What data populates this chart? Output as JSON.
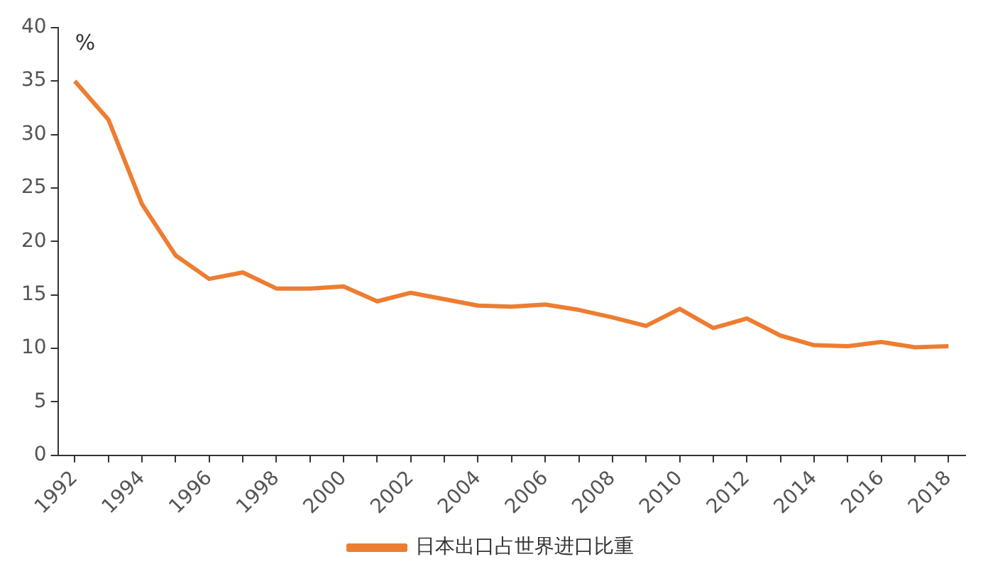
{
  "chart_data": {
    "type": "line",
    "ylabel": "%",
    "categories": [
      "1992",
      null,
      "1994",
      null,
      "1996",
      null,
      "1998",
      null,
      "2000",
      null,
      "2002",
      null,
      "2004",
      null,
      "2006",
      null,
      "2008",
      null,
      "2010",
      null,
      "2012",
      null,
      "2014",
      null,
      "2016",
      null,
      "2018"
    ],
    "series": [
      {
        "name": "日本出口占世界进口比重",
        "color": "#ed7d31",
        "values": [
          35.0,
          31.4,
          23.5,
          18.7,
          16.5,
          17.1,
          15.6,
          15.6,
          15.8,
          14.4,
          15.2,
          14.6,
          14.0,
          13.9,
          14.1,
          13.6,
          12.9,
          12.1,
          13.7,
          11.9,
          12.8,
          11.2,
          10.3,
          10.2,
          10.6,
          10.1,
          10.2
        ]
      }
    ],
    "ylim": [
      0,
      40
    ],
    "yticks": [
      0,
      5,
      10,
      15,
      20,
      25,
      30,
      35,
      40
    ],
    "grid": false,
    "legend": "bottom",
    "marker": "none",
    "line_style": "solid"
  }
}
